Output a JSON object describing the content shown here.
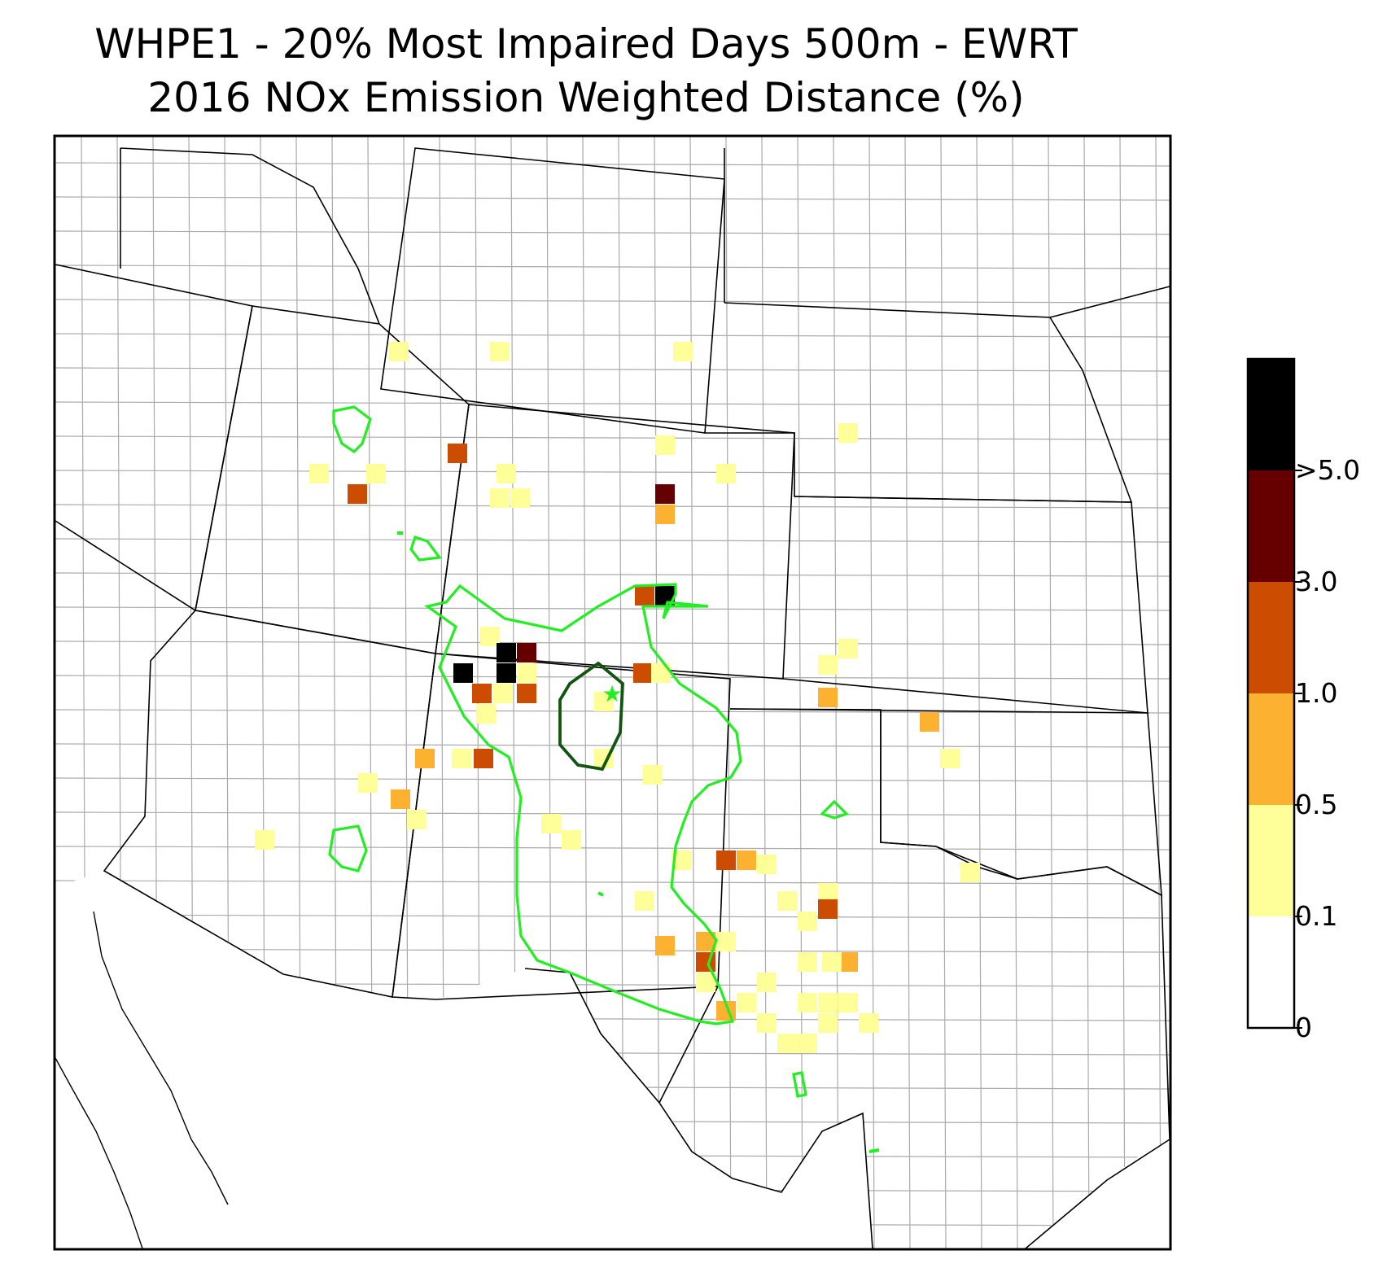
{
  "title": {
    "line1": "WHPE1 - 20% Most Impaired Days 500m - EWRT",
    "line2": "2016 NOx Emission Weighted Distance (%)"
  },
  "colorbar": {
    "bins": [
      {
        "from": "0",
        "to": "0.1",
        "color": "#ffffff"
      },
      {
        "from": "0.1",
        "to": "0.5",
        "color": "#ffff99"
      },
      {
        "from": "0.5",
        "to": "1.0",
        "color": "#fdb131"
      },
      {
        "from": "1.0",
        "to": "3.0",
        "color": "#cc4c02"
      },
      {
        "from": "3.0",
        "to": "5.0",
        "color": "#660000"
      },
      {
        "from": ">5.0",
        "to": "",
        "color": "#000000"
      }
    ],
    "tick_labels": [
      "0",
      "0.1",
      "0.5",
      "1.0",
      "3.0",
      ">5.0"
    ]
  },
  "contour_colors": {
    "outer": "#22ee22",
    "inner": "#115511"
  },
  "basemap_colors": {
    "state_border": "#000000",
    "county_border": "#aaaaaa"
  },
  "site_marker": {
    "icon": "star",
    "color": "#22ee22"
  },
  "cells": [
    {
      "bin": 1
    },
    {
      "bin": 1
    },
    {
      "bin": 1
    },
    {
      "bin": 1
    },
    {
      "bin": 3
    },
    {
      "bin": 1
    },
    {
      "bin": 1
    },
    {
      "bin": 3
    },
    {
      "bin": 3
    },
    {
      "bin": 1
    },
    {
      "bin": 1
    },
    {
      "bin": 1
    },
    {
      "bin": 4
    },
    {
      "bin": 2
    },
    {
      "bin": 1
    },
    {
      "bin": 1
    },
    {
      "bin": 2
    },
    {
      "bin": 5
    },
    {
      "bin": 3
    },
    {
      "bin": 1
    },
    {
      "bin": 5
    },
    {
      "bin": 5
    },
    {
      "bin": 5
    },
    {
      "bin": 4
    },
    {
      "bin": 1
    },
    {
      "bin": 3
    },
    {
      "bin": 3
    },
    {
      "bin": 1
    },
    {
      "bin": 1
    },
    {
      "bin": 1
    },
    {
      "bin": 2
    },
    {
      "bin": 3
    },
    {
      "bin": 1
    },
    {
      "bin": 1
    },
    {
      "bin": 3
    },
    {
      "bin": 1
    },
    {
      "bin": 1
    },
    {
      "bin": 2
    },
    {
      "bin": 1
    },
    {
      "bin": 1
    },
    {
      "bin": 1
    },
    {
      "bin": 1
    },
    {
      "bin": 1
    },
    {
      "bin": 1
    },
    {
      "bin": 2
    },
    {
      "bin": 2
    },
    {
      "bin": 3
    },
    {
      "bin": 1
    },
    {
      "bin": 1
    },
    {
      "bin": 1
    },
    {
      "bin": 1
    },
    {
      "bin": 1
    },
    {
      "bin": 3
    },
    {
      "bin": 2
    },
    {
      "bin": 3
    },
    {
      "bin": 2
    },
    {
      "bin": 1
    },
    {
      "bin": 1
    },
    {
      "bin": 1
    },
    {
      "bin": 1
    },
    {
      "bin": 1
    },
    {
      "bin": 1
    },
    {
      "bin": 2
    },
    {
      "bin": 1
    },
    {
      "bin": 1
    },
    {
      "bin": 1
    },
    {
      "bin": 1
    },
    {
      "bin": 1
    },
    {
      "bin": 1
    },
    {
      "bin": 1
    },
    {
      "bin": 1
    },
    {
      "bin": 1
    },
    {
      "bin": 1
    },
    {
      "bin": 1
    },
    {
      "bin": 2
    },
    {
      "bin": 2
    },
    {
      "bin": 1
    },
    {
      "bin": 1
    }
  ]
}
